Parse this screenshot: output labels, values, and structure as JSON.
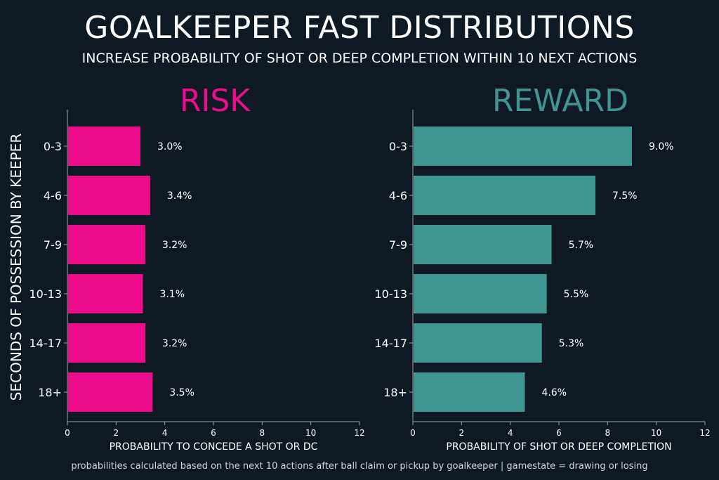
{
  "title": "GOALKEEPER FAST DISTRIBUTIONS",
  "subtitle": "INCREASE PROBABILITY OF SHOT OR DEEP COMPLETION WITHIN 10 NEXT ACTIONS",
  "footnote": "probabilities calculated based on the next 10 actions after ball claim or pickup by goalkeeper | gamestate = drawing or losing",
  "colors": {
    "background": "#0f1923",
    "risk": "#ec0c8c",
    "reward": "#3f958f",
    "text": "#ffffff",
    "axis": "#9aa3ab"
  },
  "chart_data": [
    {
      "type": "bar",
      "orientation": "horizontal",
      "title": "RISK",
      "ylabel": "SECONDS OF POSSESSION BY KEEPER",
      "xlabel": "PROBABILITY TO CONCEDE A SHOT OR DC",
      "categories": [
        "0-3",
        "4-6",
        "7-9",
        "10-13",
        "14-17",
        "18+"
      ],
      "values": [
        3.0,
        3.4,
        3.2,
        3.1,
        3.2,
        3.5
      ],
      "value_labels": [
        "3.0%",
        "3.4%",
        "3.2%",
        "3.1%",
        "3.2%",
        "3.5%"
      ],
      "xlim": [
        0,
        12
      ],
      "xticks": [
        0,
        2,
        4,
        6,
        8,
        10,
        12
      ],
      "color": "#ec0c8c",
      "grid": false
    },
    {
      "type": "bar",
      "orientation": "horizontal",
      "title": "REWARD",
      "xlabel": "PROBABILITY OF SHOT OR DEEP COMPLETION",
      "categories": [
        "0-3",
        "4-6",
        "7-9",
        "10-13",
        "14-17",
        "18+"
      ],
      "values": [
        9.0,
        7.5,
        5.7,
        5.5,
        5.3,
        4.6
      ],
      "value_labels": [
        "9.0%",
        "7.5%",
        "5.7%",
        "5.5%",
        "5.3%",
        "4.6%"
      ],
      "xlim": [
        0,
        12
      ],
      "xticks": [
        0,
        2,
        4,
        6,
        8,
        10,
        12
      ],
      "color": "#3f958f",
      "grid": false
    }
  ]
}
